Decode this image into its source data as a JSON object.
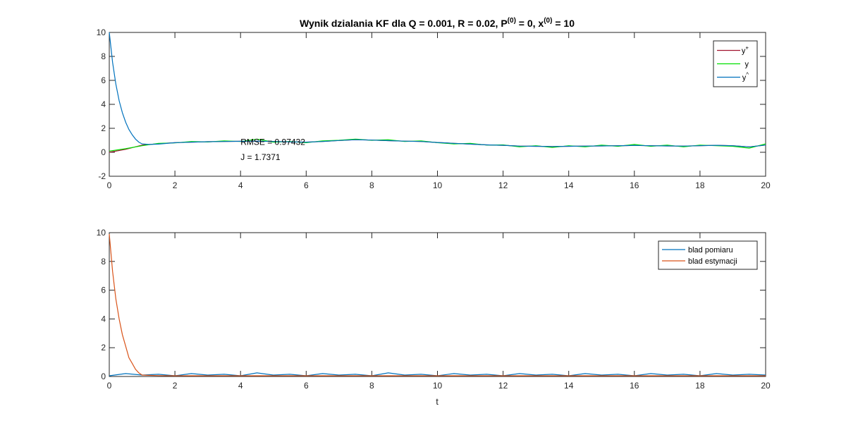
{
  "figure": {
    "title_main": "Wynik dzialania KF dla Q = 0.001, R = 0.02, P",
    "title_p_sup": "(0)",
    "title_mid": " = 0, x",
    "title_x_sup": "(0)",
    "title_end": " = 10"
  },
  "chart_data": [
    {
      "type": "line",
      "xlim": [
        0,
        20
      ],
      "ylim": [
        -2,
        10
      ],
      "xticks": [
        0,
        2,
        4,
        6,
        8,
        10,
        12,
        14,
        16,
        18,
        20
      ],
      "yticks": [
        -2,
        0,
        2,
        4,
        6,
        8,
        10
      ],
      "legend_position": "top-right",
      "grid": false,
      "annotations": {
        "rmse": "RMSE = 0.97432",
        "j": "J = 1.7371"
      },
      "series": [
        {
          "name": "y+",
          "label_base": "y",
          "label_sup": "+",
          "color": "#a2142f",
          "x": [
            0,
            0.5,
            1,
            1.5,
            2,
            2.5,
            3,
            3.5,
            4,
            4.5,
            5,
            5.5,
            6,
            6.5,
            7,
            7.5,
            8,
            8.5,
            9,
            9.5,
            10,
            10.5,
            11,
            11.5,
            12,
            12.5,
            13,
            13.5,
            14,
            14.5,
            15,
            15.5,
            16,
            16.5,
            17,
            17.5,
            18,
            18.5,
            19,
            19.5,
            20
          ],
          "values": [
            0.0,
            0.25,
            0.6,
            0.72,
            0.8,
            0.85,
            0.88,
            0.9,
            0.92,
            0.93,
            0.9,
            0.87,
            0.85,
            0.9,
            0.98,
            1.05,
            1.02,
            0.97,
            0.93,
            0.9,
            0.82,
            0.75,
            0.68,
            0.62,
            0.58,
            0.52,
            0.5,
            0.48,
            0.5,
            0.52,
            0.53,
            0.55,
            0.57,
            0.55,
            0.53,
            0.52,
            0.55,
            0.58,
            0.55,
            0.45,
            0.6
          ]
        },
        {
          "name": "y",
          "label_base": "y",
          "label_sup": "",
          "color": "#00e000",
          "x": [
            0,
            0.5,
            1,
            1.5,
            2,
            2.5,
            3,
            3.5,
            4,
            4.5,
            5,
            5.5,
            6,
            6.5,
            7,
            7.5,
            8,
            8.5,
            9,
            9.5,
            10,
            10.5,
            11,
            11.5,
            12,
            12.5,
            13,
            13.5,
            14,
            14.5,
            15,
            15.5,
            16,
            16.5,
            17,
            17.5,
            18,
            18.5,
            19,
            19.5,
            20
          ],
          "values": [
            0.1,
            0.3,
            0.55,
            0.75,
            0.78,
            0.9,
            0.86,
            0.95,
            0.9,
            1.1,
            0.85,
            0.9,
            0.8,
            0.95,
            1.0,
            1.1,
            1.0,
            1.05,
            0.9,
            0.95,
            0.8,
            0.7,
            0.75,
            0.6,
            0.62,
            0.45,
            0.55,
            0.4,
            0.55,
            0.45,
            0.6,
            0.5,
            0.65,
            0.5,
            0.6,
            0.45,
            0.6,
            0.55,
            0.5,
            0.35,
            0.7
          ]
        },
        {
          "name": "y^",
          "label_base": "y",
          "label_sup": "^",
          "color": "#0072bd",
          "x": [
            0,
            0.1,
            0.2,
            0.3,
            0.4,
            0.5,
            0.6,
            0.7,
            0.8,
            0.9,
            1.0,
            1.2,
            1.5,
            2,
            2.5,
            3,
            3.5,
            4,
            4.5,
            5,
            5.5,
            6,
            6.5,
            7,
            7.5,
            8,
            8.5,
            9,
            9.5,
            10,
            10.5,
            11,
            11.5,
            12,
            12.5,
            13,
            13.5,
            14,
            14.5,
            15,
            15.5,
            16,
            16.5,
            17,
            17.5,
            18,
            18.5,
            19,
            19.5,
            20
          ],
          "values": [
            10.0,
            7.5,
            5.7,
            4.3,
            3.3,
            2.5,
            1.9,
            1.45,
            1.1,
            0.85,
            0.7,
            0.65,
            0.68,
            0.8,
            0.85,
            0.88,
            0.9,
            0.92,
            0.93,
            0.9,
            0.87,
            0.85,
            0.9,
            0.98,
            1.05,
            1.02,
            0.97,
            0.93,
            0.9,
            0.82,
            0.75,
            0.68,
            0.62,
            0.58,
            0.52,
            0.5,
            0.48,
            0.5,
            0.52,
            0.53,
            0.55,
            0.57,
            0.55,
            0.53,
            0.52,
            0.55,
            0.58,
            0.55,
            0.45,
            0.6
          ]
        }
      ]
    },
    {
      "type": "line",
      "xlim": [
        0,
        20
      ],
      "ylim": [
        0,
        10
      ],
      "xticks": [
        0,
        2,
        4,
        6,
        8,
        10,
        12,
        14,
        16,
        18,
        20
      ],
      "yticks": [
        0,
        2,
        4,
        6,
        8,
        10
      ],
      "xlabel": "t",
      "legend_position": "top-right",
      "grid": false,
      "series": [
        {
          "name": "blad pomiaru",
          "color": "#0072bd",
          "x": [
            0,
            0.5,
            1,
            1.5,
            2,
            2.5,
            3,
            3.5,
            4,
            4.5,
            5,
            5.5,
            6,
            6.5,
            7,
            7.5,
            8,
            8.5,
            9,
            9.5,
            10,
            10.5,
            11,
            11.5,
            12,
            12.5,
            13,
            13.5,
            14,
            14.5,
            15,
            15.5,
            16,
            16.5,
            17,
            17.5,
            18,
            18.5,
            19,
            19.5,
            20
          ],
          "values": [
            0.05,
            0.2,
            0.1,
            0.15,
            0.05,
            0.2,
            0.1,
            0.15,
            0.05,
            0.25,
            0.1,
            0.15,
            0.05,
            0.2,
            0.1,
            0.15,
            0.05,
            0.25,
            0.1,
            0.15,
            0.05,
            0.2,
            0.1,
            0.15,
            0.05,
            0.2,
            0.1,
            0.15,
            0.05,
            0.2,
            0.1,
            0.15,
            0.05,
            0.2,
            0.1,
            0.15,
            0.05,
            0.2,
            0.1,
            0.15,
            0.1
          ]
        },
        {
          "name": "blad estymacji",
          "color": "#d95319",
          "x": [
            0,
            0.1,
            0.2,
            0.3,
            0.4,
            0.5,
            0.6,
            0.7,
            0.8,
            0.9,
            1.0,
            1.2,
            1.5,
            2,
            3,
            4,
            5,
            6,
            7,
            8,
            9,
            10,
            11,
            12,
            13,
            14,
            15,
            16,
            17,
            18,
            19,
            20
          ],
          "values": [
            9.9,
            7.3,
            5.4,
            4.0,
            2.9,
            2.1,
            1.3,
            0.9,
            0.5,
            0.25,
            0.1,
            0.08,
            0.06,
            0.05,
            0.05,
            0.05,
            0.05,
            0.05,
            0.05,
            0.05,
            0.05,
            0.05,
            0.05,
            0.05,
            0.05,
            0.05,
            0.05,
            0.05,
            0.05,
            0.05,
            0.05,
            0.05
          ]
        }
      ]
    }
  ]
}
